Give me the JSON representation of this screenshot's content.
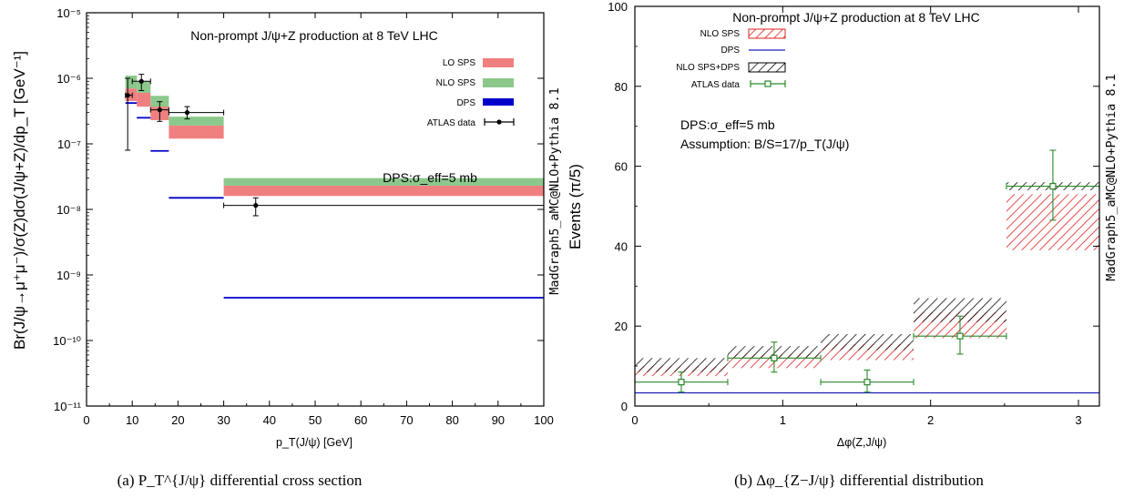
{
  "chart_data": [
    {
      "type": "bar",
      "panel_caption": "(a) P_T^{J/ψ} differential cross section",
      "title": "Non-prompt J/ψ+Z production at 8 TeV LHC",
      "annotation": "DPS:σ_eff=5 mb",
      "side_label": "MadGraph5_aMC@NLO+Pythia 8.1",
      "xlabel": "p_T(J/ψ) [GeV]",
      "ylabel": "Br(J/ψ→μ⁺μ⁻)/σ(Z)dσ(J/ψ+Z)/dp_T [GeV⁻¹]",
      "xlim": [
        0,
        100
      ],
      "ylim": [
        1e-11,
        1e-05
      ],
      "yscale": "log",
      "x_ticks": [
        "0",
        "10",
        "20",
        "30",
        "40",
        "50",
        "60",
        "70",
        "80",
        "90",
        "100"
      ],
      "y_ticks": [
        "10⁻¹¹",
        "10⁻¹⁰",
        "10⁻⁹",
        "10⁻⁸",
        "10⁻⁷",
        "10⁻⁶",
        "10⁻⁵"
      ],
      "legend_position": "top-right",
      "series": [
        {
          "name": "LO SPS",
          "color": "#f08080",
          "bins": [
            {
              "x0": 8.5,
              "x1": 11,
              "lo": 4.5e-07,
              "hi": 7e-07
            },
            {
              "x0": 11,
              "x1": 14,
              "lo": 3.7e-07,
              "hi": 6e-07
            },
            {
              "x0": 14,
              "x1": 18,
              "lo": 2.3e-07,
              "hi": 3.7e-07
            },
            {
              "x0": 18,
              "x1": 30,
              "lo": 1.2e-07,
              "hi": 1.9e-07
            },
            {
              "x0": 30,
              "x1": 100,
              "lo": 1.6e-08,
              "hi": 2.3e-08
            }
          ]
        },
        {
          "name": "NLO SPS",
          "color": "#8cc88c",
          "bins": [
            {
              "x0": 8.5,
              "x1": 11,
              "lo": 7e-07,
              "hi": 1.1e-06
            },
            {
              "x0": 11,
              "x1": 14,
              "lo": 6e-07,
              "hi": 9e-07
            },
            {
              "x0": 14,
              "x1": 18,
              "lo": 3.7e-07,
              "hi": 5.4e-07
            },
            {
              "x0": 18,
              "x1": 30,
              "lo": 1.9e-07,
              "hi": 2.6e-07
            },
            {
              "x0": 30,
              "x1": 100,
              "lo": 2.3e-08,
              "hi": 3e-08
            }
          ]
        },
        {
          "name": "DPS",
          "color": "#0000cc",
          "bins": [
            {
              "x0": 8.5,
              "x1": 11,
              "value": 4.2e-07
            },
            {
              "x0": 11,
              "x1": 14,
              "value": 2.5e-07
            },
            {
              "x0": 14,
              "x1": 18,
              "value": 7.8e-08
            },
            {
              "x0": 18,
              "x1": 30,
              "value": 1.5e-08
            },
            {
              "x0": 30,
              "x1": 100,
              "value": 4.5e-10
            }
          ]
        },
        {
          "name": "ATLAS data",
          "color": "#000000",
          "points": [
            {
              "x": 9,
              "xlo": 8.5,
              "xhi": 10,
              "y": 5.5e-07,
              "ylo": 8e-08,
              "yhi": 1e-06
            },
            {
              "x": 12,
              "xlo": 10,
              "xhi": 14,
              "y": 9e-07,
              "ylo": 6.5e-07,
              "yhi": 1.15e-06
            },
            {
              "x": 16,
              "xlo": 14,
              "xhi": 18,
              "y": 3.3e-07,
              "ylo": 2.2e-07,
              "yhi": 4.4e-07
            },
            {
              "x": 22,
              "xlo": 18,
              "xhi": 30,
              "y": 3e-07,
              "ylo": 2.4e-07,
              "yhi": 3.7e-07
            },
            {
              "x": 37,
              "xlo": 30,
              "xhi": 100,
              "y": 1.15e-08,
              "ylo": 8e-09,
              "yhi": 1.5e-08
            }
          ]
        }
      ]
    },
    {
      "type": "bar",
      "panel_caption": "(b) Δφ_{Z−J/ψ} differential distribution",
      "title": "Non-prompt J/ψ+Z production at 8 TeV LHC",
      "annotation": "DPS:σ_eff=5 mb",
      "annotation2": "Assumption: B/S=17/p_T(J/ψ)",
      "side_label": "MadGraph5_aMC@NLO+Pythia 8.1",
      "xlabel": "Δφ(Z,J/ψ)",
      "ylabel": "Events (π/5)",
      "xlim": [
        0,
        3.1416
      ],
      "ylim": [
        0,
        100
      ],
      "x_ticks": [
        "0",
        "1",
        "2",
        "3"
      ],
      "y_ticks": [
        "0",
        "20",
        "40",
        "60",
        "80",
        "100"
      ],
      "legend_position": "top-left",
      "series": [
        {
          "name": "NLO SPS",
          "color": "#e03030",
          "bins": [
            {
              "x0": 0,
              "x1": 0.628,
              "lo": 7.5,
              "hi": 10.0
            },
            {
              "x0": 0.628,
              "x1": 1.257,
              "lo": 9.5,
              "hi": 13.0
            },
            {
              "x0": 1.257,
              "x1": 1.885,
              "lo": 11.5,
              "hi": 15.5
            },
            {
              "x0": 1.885,
              "x1": 2.513,
              "lo": 17.0,
              "hi": 23.5
            },
            {
              "x0": 2.513,
              "x1": 3.1416,
              "lo": 39.0,
              "hi": 53.0
            }
          ]
        },
        {
          "name": "DPS",
          "color": "#2020c0",
          "bins": [
            {
              "x0": 0,
              "x1": 3.1416,
              "value": 3.3
            }
          ]
        },
        {
          "name": "NLO SPS+DPS",
          "color": "#000000",
          "bins": [
            {
              "x0": 0,
              "x1": 0.628,
              "lo": 8.5,
              "hi": 12.0
            },
            {
              "x0": 0.628,
              "x1": 1.257,
              "lo": 12.0,
              "hi": 15.0
            },
            {
              "x0": 1.257,
              "x1": 1.885,
              "lo": 14.0,
              "hi": 18.0
            },
            {
              "x0": 1.885,
              "x1": 2.513,
              "lo": 21.0,
              "hi": 27.0
            },
            {
              "x0": 2.513,
              "x1": 3.1416,
              "lo": 54.0,
              "hi": 56.0
            }
          ]
        },
        {
          "name": "ATLAS data",
          "color": "#2a8a2a",
          "points": [
            {
              "x": 0.314,
              "xlo": 0,
              "xhi": 0.628,
              "y": 6.0,
              "ylo": 3.5,
              "yhi": 8.5
            },
            {
              "x": 0.942,
              "xlo": 0.628,
              "xhi": 1.257,
              "y": 12.0,
              "ylo": 8.5,
              "yhi": 16.0
            },
            {
              "x": 1.571,
              "xlo": 1.257,
              "xhi": 1.885,
              "y": 6.0,
              "ylo": 3.5,
              "yhi": 9.0
            },
            {
              "x": 2.199,
              "xlo": 1.885,
              "xhi": 2.513,
              "y": 17.5,
              "ylo": 13.0,
              "yhi": 22.5
            },
            {
              "x": 2.827,
              "xlo": 2.513,
              "xhi": 3.1416,
              "y": 55.0,
              "ylo": 46.5,
              "yhi": 64.0
            }
          ]
        }
      ]
    }
  ]
}
